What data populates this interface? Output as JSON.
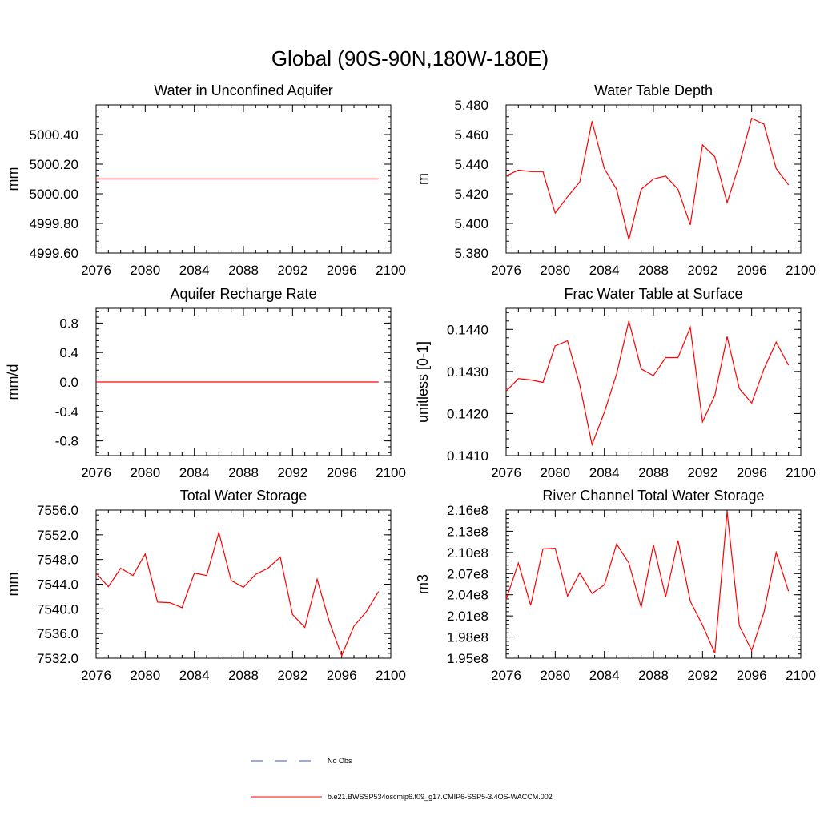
{
  "title": "Global (90S-90N,180W-180E)",
  "legend": {
    "obs_label": "No Obs",
    "obs_color": "#3b4fd8",
    "model_label": "b.e21.BWSSP534oscmip6.f09_g17.CMIP6-SSP5-3.4OS-WACCM.002",
    "model_color": "#ff0000"
  },
  "chart_data": [
    {
      "type": "line",
      "title": "Water in Unconfined Aquifer",
      "ylabel": "mm",
      "xlim": [
        2076,
        2100
      ],
      "xticks": [
        "2076",
        "2080",
        "2084",
        "2088",
        "2092",
        "2096",
        "2100"
      ],
      "ylim": [
        4999.6,
        5000.6
      ],
      "yticks": [
        "4999.60",
        "4999.80",
        "5000.00",
        "5000.20",
        "5000.40"
      ],
      "x": [
        2076,
        2077,
        2078,
        2079,
        2080,
        2081,
        2082,
        2083,
        2084,
        2085,
        2086,
        2087,
        2088,
        2089,
        2090,
        2091,
        2092,
        2093,
        2094,
        2095,
        2096,
        2097,
        2098,
        2099
      ],
      "series": [
        {
          "values": [
            5000.1,
            5000.1,
            5000.1,
            5000.1,
            5000.1,
            5000.1,
            5000.1,
            5000.1,
            5000.1,
            5000.1,
            5000.1,
            5000.1,
            5000.1,
            5000.1,
            5000.1,
            5000.1,
            5000.1,
            5000.1,
            5000.1,
            5000.1,
            5000.1,
            5000.1,
            5000.1,
            5000.1
          ]
        }
      ]
    },
    {
      "type": "line",
      "title": "Water Table Depth",
      "ylabel": "m",
      "xlim": [
        2076,
        2100
      ],
      "xticks": [
        "2076",
        "2080",
        "2084",
        "2088",
        "2092",
        "2096",
        "2100"
      ],
      "ylim": [
        5.38,
        5.48
      ],
      "yticks": [
        "5.380",
        "5.400",
        "5.420",
        "5.440",
        "5.460",
        "5.480"
      ],
      "x": [
        2076,
        2077,
        2078,
        2079,
        2080,
        2081,
        2082,
        2083,
        2084,
        2085,
        2086,
        2087,
        2088,
        2089,
        2090,
        2091,
        2092,
        2093,
        2094,
        2095,
        2096,
        2097,
        2098,
        2099
      ],
      "series": [
        {
          "values": [
            5.432,
            5.436,
            5.435,
            5.435,
            5.407,
            5.418,
            5.428,
            5.469,
            5.437,
            5.423,
            5.389,
            5.423,
            5.43,
            5.432,
            5.423,
            5.399,
            5.453,
            5.445,
            5.414,
            5.44,
            5.471,
            5.467,
            5.437,
            5.426
          ]
        }
      ]
    },
    {
      "type": "line",
      "title": "Aquifer Recharge Rate",
      "ylabel": "mm/d",
      "xlim": [
        2076,
        2100
      ],
      "xticks": [
        "2076",
        "2080",
        "2084",
        "2088",
        "2092",
        "2096",
        "2100"
      ],
      "ylim": [
        -1.0,
        1.0
      ],
      "yticks": [
        "-0.8",
        "-0.4",
        "0.0",
        "0.4",
        "0.8"
      ],
      "x": [
        2076,
        2077,
        2078,
        2079,
        2080,
        2081,
        2082,
        2083,
        2084,
        2085,
        2086,
        2087,
        2088,
        2089,
        2090,
        2091,
        2092,
        2093,
        2094,
        2095,
        2096,
        2097,
        2098,
        2099
      ],
      "series": [
        {
          "values": [
            0,
            0,
            0,
            0,
            0,
            0,
            0,
            0,
            0,
            0,
            0,
            0,
            0,
            0,
            0,
            0,
            0,
            0,
            0,
            0,
            0,
            0,
            0,
            0
          ]
        }
      ]
    },
    {
      "type": "line",
      "title": "Frac Water Table at Surface",
      "ylabel": "unitless [0-1]",
      "xlim": [
        2076,
        2100
      ],
      "xticks": [
        "2076",
        "2080",
        "2084",
        "2088",
        "2092",
        "2096",
        "2100"
      ],
      "ylim": [
        0.141,
        0.1445
      ],
      "yticks": [
        "0.1410",
        "0.1420",
        "0.1430",
        "0.1440"
      ],
      "x": [
        2076,
        2077,
        2078,
        2079,
        2080,
        2081,
        2082,
        2083,
        2084,
        2085,
        2086,
        2087,
        2088,
        2089,
        2090,
        2091,
        2092,
        2093,
        2094,
        2095,
        2096,
        2097,
        2098,
        2099
      ],
      "series": [
        {
          "values": [
            0.14253,
            0.14283,
            0.1428,
            0.14274,
            0.14361,
            0.14373,
            0.14268,
            0.14126,
            0.14203,
            0.14294,
            0.1442,
            0.14306,
            0.1429,
            0.14333,
            0.14333,
            0.14405,
            0.1418,
            0.14243,
            0.14383,
            0.14259,
            0.14225,
            0.14306,
            0.1437,
            0.14315
          ]
        }
      ]
    },
    {
      "type": "line",
      "title": "Total Water Storage",
      "ylabel": "mm",
      "xlim": [
        2076,
        2100
      ],
      "xticks": [
        "2076",
        "2080",
        "2084",
        "2088",
        "2092",
        "2096",
        "2100"
      ],
      "ylim": [
        7532,
        7556
      ],
      "yticks": [
        "7532.0",
        "7536.0",
        "7540.0",
        "7544.0",
        "7548.0",
        "7552.0",
        "7556.0"
      ],
      "x": [
        2076,
        2077,
        2078,
        2079,
        2080,
        2081,
        2082,
        2083,
        2084,
        2085,
        2086,
        2087,
        2088,
        2089,
        2090,
        2091,
        2092,
        2093,
        2094,
        2095,
        2096,
        2097,
        2098,
        2099
      ],
      "series": [
        {
          "values": [
            7545.8,
            7543.6,
            7546.6,
            7545.4,
            7548.9,
            7541.1,
            7541.0,
            7540.2,
            7545.8,
            7545.4,
            7552.4,
            7544.6,
            7543.5,
            7545.6,
            7546.6,
            7548.4,
            7539.1,
            7537.0,
            7544.8,
            7537.9,
            7532.4,
            7537.2,
            7539.5,
            7542.8
          ]
        }
      ]
    },
    {
      "type": "line",
      "title": "River Channel Total Water Storage",
      "ylabel": "m3",
      "xlim": [
        2076,
        2100
      ],
      "xticks": [
        "2076",
        "2080",
        "2084",
        "2088",
        "2092",
        "2096",
        "2100"
      ],
      "ylim": [
        195000000,
        216000000
      ],
      "yticks": [
        "1.95e8",
        "1.98e8",
        "2.01e8",
        "2.04e8",
        "2.07e8",
        "2.10e8",
        "2.13e8",
        "2.16e8"
      ],
      "x": [
        2076,
        2077,
        2078,
        2079,
        2080,
        2081,
        2082,
        2083,
        2084,
        2085,
        2086,
        2087,
        2088,
        2089,
        2090,
        2091,
        2092,
        2093,
        2094,
        2095,
        2096,
        2097,
        2098,
        2099
      ],
      "series": [
        {
          "values": [
            203300000,
            208500000,
            202500000,
            210500000,
            210600000,
            203800000,
            207100000,
            204200000,
            205400000,
            211200000,
            208500000,
            202200000,
            211100000,
            203700000,
            211700000,
            203100000,
            199700000,
            195700000,
            215800000,
            199600000,
            196100000,
            201500000,
            210000000,
            204500000
          ]
        }
      ]
    }
  ]
}
